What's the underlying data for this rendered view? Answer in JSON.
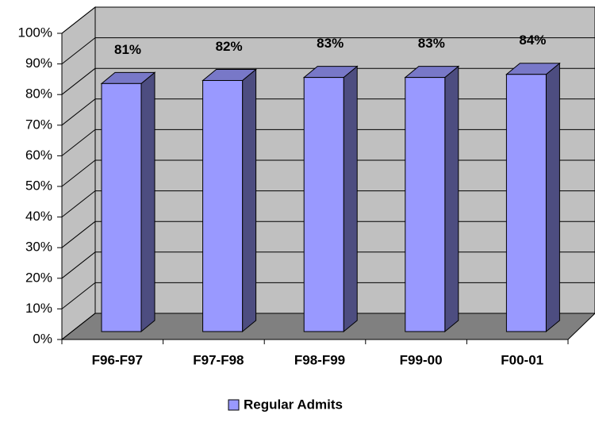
{
  "chart_data": {
    "type": "bar",
    "categories": [
      "F96-F97",
      "F97-F98",
      "F98-F99",
      "F99-00",
      "F00-01"
    ],
    "series": [
      {
        "name": "Regular Admits",
        "color": "#9999ff",
        "values": [
          81,
          82,
          83,
          83,
          84
        ],
        "value_labels": [
          "81%",
          "82%",
          "83%",
          "83%",
          "84%"
        ]
      }
    ],
    "ylim": [
      0,
      100
    ],
    "yticks": [
      {
        "value": 0,
        "label": "0%"
      },
      {
        "value": 10,
        "label": "10%"
      },
      {
        "value": 20,
        "label": "20%"
      },
      {
        "value": 30,
        "label": "30%"
      },
      {
        "value": 40,
        "label": "40%"
      },
      {
        "value": 50,
        "label": "50%"
      },
      {
        "value": 60,
        "label": "60%"
      },
      {
        "value": 70,
        "label": "70%"
      },
      {
        "value": 80,
        "label": "80%"
      },
      {
        "value": 90,
        "label": "90%"
      },
      {
        "value": 100,
        "label": "100%"
      }
    ],
    "grid": true
  }
}
